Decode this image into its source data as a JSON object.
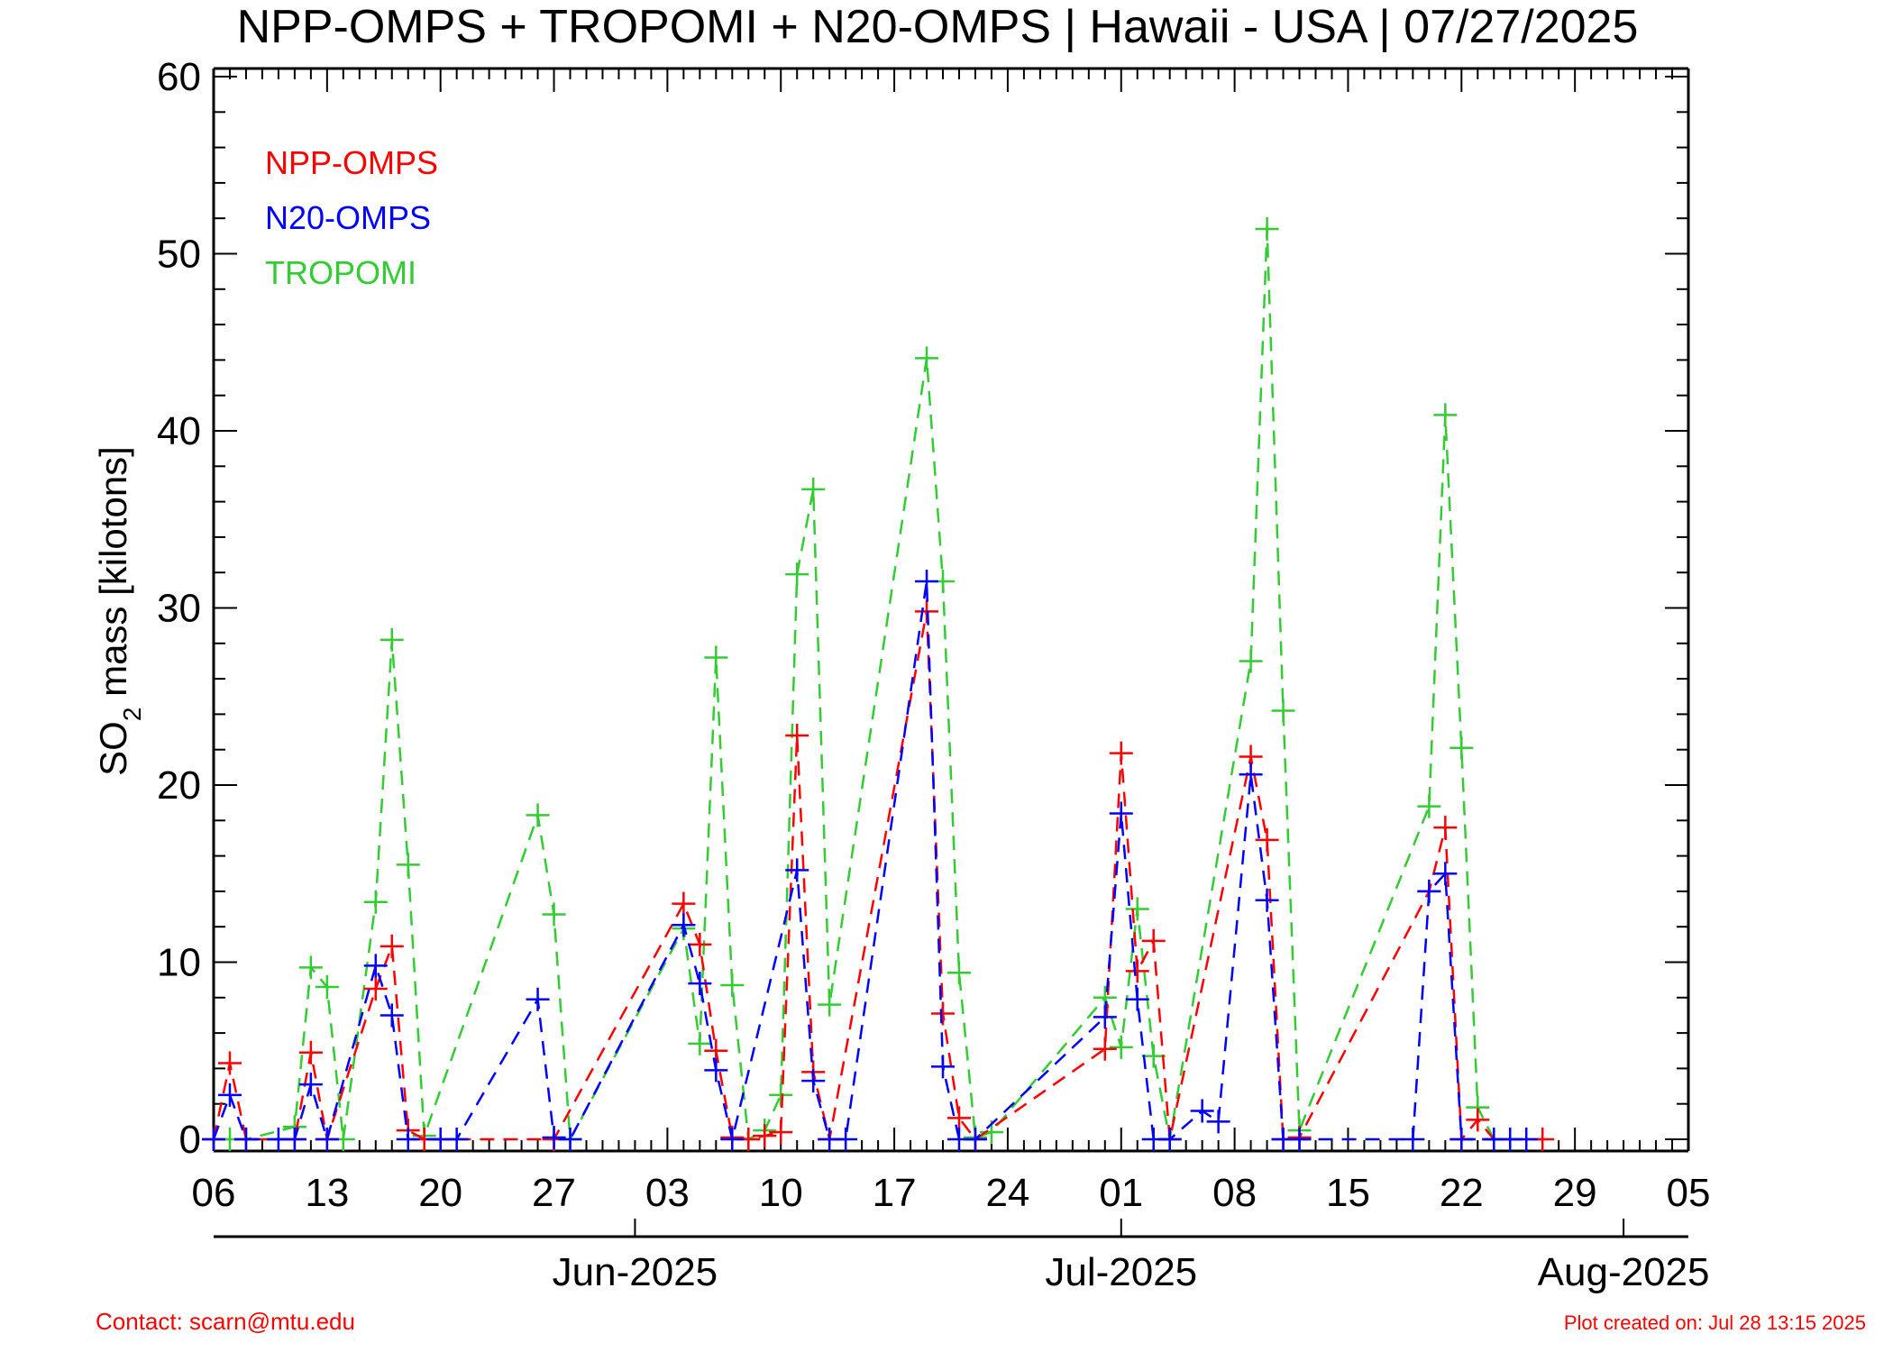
{
  "chart_data": {
    "type": "line",
    "title": "NPP-OMPS + TROPOMI + N20-OMPS | Hawaii - USA | 07/27/2025",
    "ylabel_main": "SO",
    "ylabel_sub": "2",
    "ylabel_rest": " mass [kilotons]",
    "xlabel": "",
    "ylim": [
      0,
      60
    ],
    "xlim": [
      "2025-05-06",
      "2025-08-05"
    ],
    "y_ticks": [
      "0",
      "10",
      "20",
      "30",
      "40",
      "50",
      "60"
    ],
    "x_tick_labels": [
      {
        "date": "2025-05-06",
        "label": "06"
      },
      {
        "date": "2025-05-13",
        "label": "13"
      },
      {
        "date": "2025-05-20",
        "label": "20"
      },
      {
        "date": "2025-05-27",
        "label": "27"
      },
      {
        "date": "2025-06-03",
        "label": "03"
      },
      {
        "date": "2025-06-10",
        "label": "10"
      },
      {
        "date": "2025-06-17",
        "label": "17"
      },
      {
        "date": "2025-06-24",
        "label": "24"
      },
      {
        "date": "2025-07-01",
        "label": "01"
      },
      {
        "date": "2025-07-08",
        "label": "08"
      },
      {
        "date": "2025-07-15",
        "label": "15"
      },
      {
        "date": "2025-07-22",
        "label": "22"
      },
      {
        "date": "2025-07-29",
        "label": "29"
      },
      {
        "date": "2025-08-05",
        "label": "05"
      }
    ],
    "month_labels": [
      {
        "date": "2025-06-01",
        "label": "Jun-2025"
      },
      {
        "date": "2025-07-01",
        "label": "Jul-2025"
      },
      {
        "date": "2025-08-01",
        "label": "Aug-2025"
      }
    ],
    "legend_position": "top-left",
    "grid": false,
    "series": [
      {
        "name": "NPP-OMPS",
        "color": "#ff0000",
        "points": [
          [
            "2025-05-06",
            0.0
          ],
          [
            "2025-05-07",
            4.3
          ],
          [
            "2025-05-08",
            0.0
          ],
          [
            "2025-05-11",
            0.0
          ],
          [
            "2025-05-12",
            4.9
          ],
          [
            "2025-05-13",
            0.0
          ],
          [
            "2025-05-16",
            8.5
          ],
          [
            "2025-05-17",
            10.9
          ],
          [
            "2025-05-18",
            0.5
          ],
          [
            "2025-05-19",
            0.0
          ],
          [
            "2025-05-27",
            0.0
          ],
          [
            "2025-06-04",
            13.3
          ],
          [
            "2025-06-05",
            11.0
          ],
          [
            "2025-06-06",
            5.0
          ],
          [
            "2025-06-07",
            0.1
          ],
          [
            "2025-06-08",
            0.0
          ],
          [
            "2025-06-09",
            0.2
          ],
          [
            "2025-06-10",
            0.4
          ],
          [
            "2025-06-11",
            22.8
          ],
          [
            "2025-06-12",
            3.8
          ],
          [
            "2025-06-13",
            0.0
          ],
          [
            "2025-06-19",
            29.8
          ],
          [
            "2025-06-20",
            7.1
          ],
          [
            "2025-06-21",
            1.2
          ],
          [
            "2025-06-22",
            0.0
          ],
          [
            "2025-06-30",
            5.1
          ],
          [
            "2025-07-01",
            21.8
          ],
          [
            "2025-07-02",
            9.5
          ],
          [
            "2025-07-03",
            11.2
          ],
          [
            "2025-07-04",
            0.0
          ],
          [
            "2025-07-09",
            21.6
          ],
          [
            "2025-07-10",
            16.9
          ],
          [
            "2025-07-11",
            0.0
          ],
          [
            "2025-07-12",
            0.1
          ],
          [
            "2025-07-20",
            14.0
          ],
          [
            "2025-07-21",
            17.6
          ],
          [
            "2025-07-22",
            0.0
          ],
          [
            "2025-07-23",
            1.1
          ],
          [
            "2025-07-24",
            0.0
          ],
          [
            "2025-07-27",
            0.0
          ]
        ]
      },
      {
        "name": "N20-OMPS",
        "color": "#0000ff",
        "points": [
          [
            "2025-05-06",
            0.0
          ],
          [
            "2025-05-07",
            2.5
          ],
          [
            "2025-05-08",
            0.0
          ],
          [
            "2025-05-10",
            0.0
          ],
          [
            "2025-05-11",
            0.0
          ],
          [
            "2025-05-12",
            3.1
          ],
          [
            "2025-05-13",
            0.0
          ],
          [
            "2025-05-16",
            9.8
          ],
          [
            "2025-05-17",
            7.0
          ],
          [
            "2025-05-18",
            0.0
          ],
          [
            "2025-05-20",
            0.0
          ],
          [
            "2025-05-21",
            0.0
          ],
          [
            "2025-05-26",
            7.9
          ],
          [
            "2025-05-27",
            0.1
          ],
          [
            "2025-05-28",
            0.0
          ],
          [
            "2025-06-04",
            12.1
          ],
          [
            "2025-06-05",
            8.8
          ],
          [
            "2025-06-06",
            3.9
          ],
          [
            "2025-06-07",
            0.0
          ],
          [
            "2025-06-11",
            15.2
          ],
          [
            "2025-06-12",
            3.3
          ],
          [
            "2025-06-13",
            0.0
          ],
          [
            "2025-06-14",
            0.0
          ],
          [
            "2025-06-19",
            31.5
          ],
          [
            "2025-06-20",
            4.1
          ],
          [
            "2025-06-21",
            0.0
          ],
          [
            "2025-06-22",
            0.0
          ],
          [
            "2025-06-30",
            6.9
          ],
          [
            "2025-07-01",
            18.4
          ],
          [
            "2025-07-02",
            7.9
          ],
          [
            "2025-07-03",
            0.0
          ],
          [
            "2025-07-04",
            0.0
          ],
          [
            "2025-07-06",
            1.6
          ],
          [
            "2025-07-07",
            1.0
          ],
          [
            "2025-07-09",
            20.6
          ],
          [
            "2025-07-10",
            13.5
          ],
          [
            "2025-07-11",
            0.0
          ],
          [
            "2025-07-12",
            0.0
          ],
          [
            "2025-07-19",
            0.0
          ],
          [
            "2025-07-20",
            14.0
          ],
          [
            "2025-07-21",
            15.0
          ],
          [
            "2025-07-22",
            0.0
          ],
          [
            "2025-07-24",
            0.0
          ],
          [
            "2025-07-25",
            0.0
          ],
          [
            "2025-07-26",
            0.0
          ]
        ]
      },
      {
        "name": "TROPOMI",
        "color": "#33cc33",
        "points": [
          [
            "2025-05-06",
            0.0
          ],
          [
            "2025-05-07",
            0.0
          ],
          [
            "2025-05-08",
            0.0
          ],
          [
            "2025-05-11",
            0.7
          ],
          [
            "2025-05-12",
            9.7
          ],
          [
            "2025-05-13",
            8.6
          ],
          [
            "2025-05-14",
            0.0
          ],
          [
            "2025-05-16",
            13.4
          ],
          [
            "2025-05-17",
            28.2
          ],
          [
            "2025-05-18",
            15.5
          ],
          [
            "2025-05-19",
            0.2
          ],
          [
            "2025-05-26",
            18.3
          ],
          [
            "2025-05-27",
            12.7
          ],
          [
            "2025-05-28",
            0.0
          ],
          [
            "2025-06-04",
            11.9
          ],
          [
            "2025-06-05",
            5.4
          ],
          [
            "2025-06-06",
            27.2
          ],
          [
            "2025-06-07",
            8.7
          ],
          [
            "2025-06-08",
            0.0
          ],
          [
            "2025-06-09",
            0.5
          ],
          [
            "2025-06-10",
            2.5
          ],
          [
            "2025-06-11",
            31.9
          ],
          [
            "2025-06-12",
            36.7
          ],
          [
            "2025-06-13",
            7.6
          ],
          [
            "2025-06-19",
            44.1
          ],
          [
            "2025-06-20",
            31.5
          ],
          [
            "2025-06-21",
            9.4
          ],
          [
            "2025-06-22",
            0.1
          ],
          [
            "2025-06-23",
            0.4
          ],
          [
            "2025-06-30",
            8.0
          ],
          [
            "2025-07-01",
            5.2
          ],
          [
            "2025-07-02",
            13.0
          ],
          [
            "2025-07-03",
            4.7
          ],
          [
            "2025-07-04",
            0.0
          ],
          [
            "2025-07-09",
            27.0
          ],
          [
            "2025-07-10",
            51.4
          ],
          [
            "2025-07-11",
            24.2
          ],
          [
            "2025-07-12",
            0.5
          ],
          [
            "2025-07-20",
            18.8
          ],
          [
            "2025-07-21",
            40.9
          ],
          [
            "2025-07-22",
            22.1
          ],
          [
            "2025-07-23",
            1.8
          ],
          [
            "2025-07-24",
            0.0
          ]
        ]
      }
    ]
  },
  "footer": {
    "contact": "Contact: scarn@mtu.edu",
    "created": "Plot created on: Jul 28 13:15 2025"
  }
}
